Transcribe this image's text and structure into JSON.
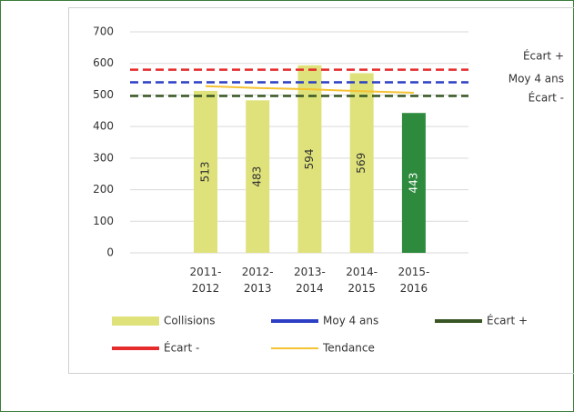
{
  "chart_data": {
    "type": "bar",
    "categories": [
      "2011-2012",
      "2012-2013",
      "2013-2014",
      "2014-2015",
      "2015-2016"
    ],
    "series": [
      {
        "name": "Collisions",
        "type": "bar",
        "colors": [
          "#dfe27a",
          "#dfe27a",
          "#dfe27a",
          "#dfe27a",
          "#2e8b3e"
        ],
        "color": "#dfe27a",
        "values": [
          513,
          483,
          594,
          569,
          443
        ]
      },
      {
        "name": "Moy 4 ans",
        "type": "ref",
        "color": "#2c3fc4",
        "value": 540
      },
      {
        "name": "Écart +",
        "type": "ref",
        "color": "#375623",
        "value": 497
      },
      {
        "name": "Écart -",
        "type": "ref",
        "color": "#e52b2b",
        "value": 580
      },
      {
        "name": "Tendance",
        "type": "line",
        "color": "#f5c232",
        "values": [
          528,
          522,
          518,
          512,
          507
        ]
      }
    ],
    "annotations": [
      "Écart +",
      "Moy 4 ans",
      "Écart -"
    ],
    "ylim": [
      0,
      700
    ],
    "yticks": [
      0,
      100,
      200,
      300,
      400,
      500,
      600,
      700
    ],
    "grid": true
  }
}
